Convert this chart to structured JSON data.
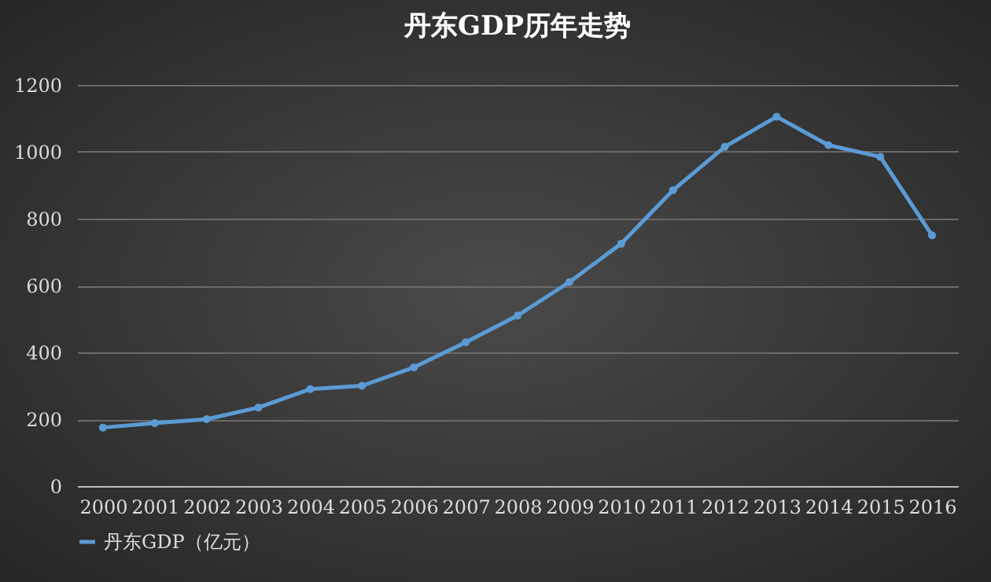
{
  "chart_data": {
    "type": "line",
    "title": "丹东GDP历年走势",
    "categories": [
      "2000",
      "2001",
      "2002",
      "2003",
      "2004",
      "2005",
      "2006",
      "2007",
      "2008",
      "2009",
      "2010",
      "2011",
      "2012",
      "2013",
      "2014",
      "2015",
      "2016"
    ],
    "series": [
      {
        "name": "丹东GDP（亿元）",
        "color": "#5b9bd5",
        "values": [
          175,
          188,
          200,
          235,
          290,
          300,
          355,
          430,
          510,
          610,
          725,
          885,
          1015,
          1105,
          1020,
          985,
          750
        ]
      }
    ],
    "ylim": [
      0,
      1200
    ],
    "yticks": [
      0,
      200,
      400,
      600,
      800,
      1000,
      1200
    ],
    "grid": "y",
    "legend": "bottom",
    "marker": "circle",
    "line_style": "solid"
  }
}
